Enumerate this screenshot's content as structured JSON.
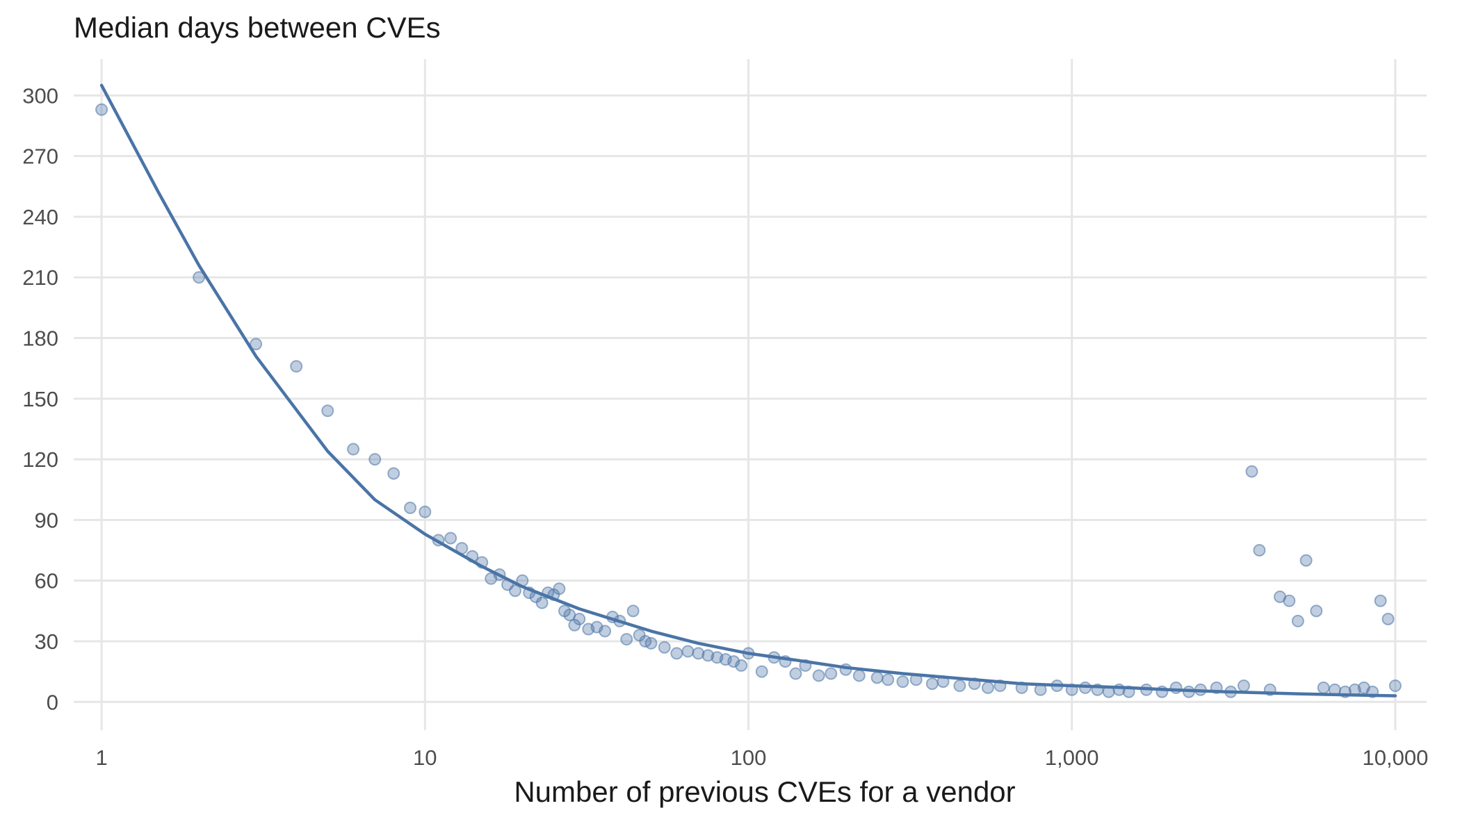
{
  "chart_data": {
    "type": "scatter",
    "title": "Median days between CVEs",
    "xlabel": "Number of previous CVEs for a vendor",
    "ylabel": "",
    "x_scale": "log10",
    "xlim": [
      0.82,
      12500
    ],
    "ylim": [
      -14,
      318
    ],
    "x_ticks": [
      1,
      10,
      100,
      1000,
      10000
    ],
    "x_tick_labels": [
      "1",
      "10",
      "100",
      "1,000",
      "10,000"
    ],
    "y_ticks": [
      0,
      30,
      60,
      90,
      120,
      150,
      180,
      210,
      240,
      270,
      300
    ],
    "y_tick_labels": [
      "0",
      "30",
      "60",
      "90",
      "120",
      "150",
      "180",
      "210",
      "240",
      "270",
      "300"
    ],
    "grid": true,
    "legend": "none",
    "point_color": "#4a74a6",
    "line_color": "#4a74a6",
    "series": [
      {
        "type": "scatter",
        "x": [
          1,
          2,
          3,
          4,
          5,
          6,
          7,
          8,
          9,
          10,
          11,
          12,
          13,
          14,
          15,
          16,
          17,
          18,
          19,
          20,
          21,
          22,
          23,
          24,
          25,
          26,
          27,
          28,
          29,
          30,
          32,
          34,
          36,
          38,
          40,
          42,
          44,
          46,
          48,
          50,
          55,
          60,
          65,
          70,
          75,
          80,
          85,
          90,
          95,
          100,
          110,
          120,
          130,
          140,
          150,
          165,
          180,
          200,
          220,
          250,
          270,
          300,
          330,
          370,
          400,
          450,
          500,
          550,
          600,
          700,
          800,
          900,
          1000,
          1100,
          1200,
          1300,
          1400,
          1500,
          1700,
          1900,
          2100,
          2300,
          2500,
          2800,
          3100,
          3400,
          3600,
          3800,
          4100,
          4400,
          4700,
          5000,
          5300,
          5700,
          6000,
          6500,
          7000,
          7500,
          8000,
          8500,
          9000,
          9500,
          10000
        ],
        "y": [
          293,
          210,
          177,
          166,
          144,
          125,
          120,
          113,
          96,
          94,
          80,
          81,
          76,
          72,
          69,
          61,
          63,
          58,
          55,
          60,
          54,
          52,
          49,
          54,
          53,
          56,
          45,
          43,
          38,
          41,
          36,
          37,
          35,
          42,
          40,
          31,
          45,
          33,
          30,
          29,
          27,
          24,
          25,
          24,
          23,
          22,
          21,
          20,
          18,
          24,
          15,
          22,
          20,
          14,
          18,
          13,
          14,
          16,
          13,
          12,
          11,
          10,
          11,
          9,
          10,
          8,
          9,
          7,
          8,
          7,
          6,
          8,
          6,
          7,
          6,
          5,
          6,
          5,
          6,
          5,
          7,
          5,
          6,
          7,
          5,
          8,
          114,
          75,
          6,
          52,
          50,
          40,
          70,
          45,
          7,
          6,
          5,
          6,
          7,
          5,
          50,
          41,
          8
        ]
      },
      {
        "type": "line",
        "name": "",
        "x": [
          1,
          1.5,
          2,
          3,
          5,
          7,
          10,
          15,
          20,
          30,
          50,
          70,
          100,
          150,
          200,
          300,
          500,
          700,
          1000,
          1500,
          2000,
          3000,
          5000,
          7000,
          10000
        ],
        "y": [
          305,
          252,
          216,
          171,
          124,
          100,
          83,
          67,
          57,
          46,
          35,
          29,
          24,
          20,
          17,
          14,
          11,
          9,
          8,
          7,
          6,
          5,
          4,
          3.5,
          3
        ]
      }
    ]
  }
}
